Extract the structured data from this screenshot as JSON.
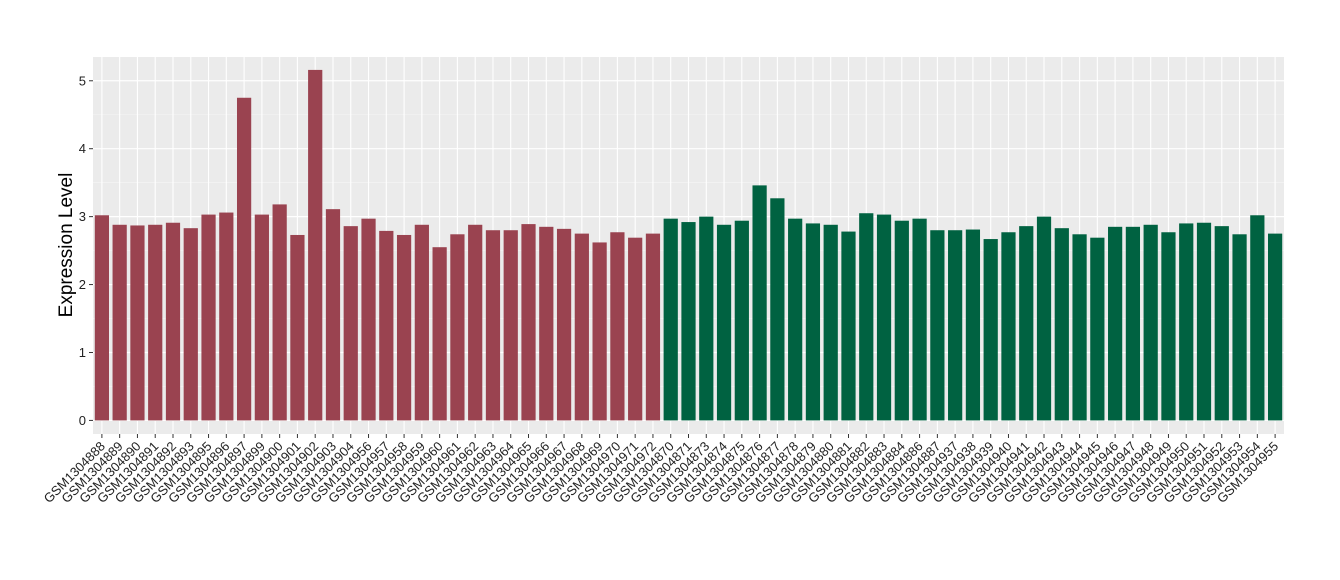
{
  "chart_data": {
    "type": "bar",
    "ylabel": "Expression Level",
    "xlabel": "",
    "ylim": [
      -0.2,
      5.35
    ],
    "yticks": [
      0,
      1,
      2,
      3,
      4,
      5
    ],
    "grid": true,
    "panel_background": "#ebebeb",
    "categories": [
      "GSM1304888",
      "GSM1304889",
      "GSM1304890",
      "GSM1304891",
      "GSM1304892",
      "GSM1304893",
      "GSM1304895",
      "GSM1304896",
      "GSM1304897",
      "GSM1304899",
      "GSM1304900",
      "GSM1304901",
      "GSM1304902",
      "GSM1304903",
      "GSM1304904",
      "GSM1304956",
      "GSM1304957",
      "GSM1304958",
      "GSM1304959",
      "GSM1304960",
      "GSM1304961",
      "GSM1304962",
      "GSM1304963",
      "GSM1304964",
      "GSM1304965",
      "GSM1304966",
      "GSM1304967",
      "GSM1304968",
      "GSM1304969",
      "GSM1304970",
      "GSM1304971",
      "GSM1304972",
      "GSM1304870",
      "GSM1304871",
      "GSM1304873",
      "GSM1304874",
      "GSM1304875",
      "GSM1304876",
      "GSM1304877",
      "GSM1304878",
      "GSM1304879",
      "GSM1304880",
      "GSM1304881",
      "GSM1304882",
      "GSM1304883",
      "GSM1304884",
      "GSM1304886",
      "GSM1304887",
      "GSM1304937",
      "GSM1304938",
      "GSM1304939",
      "GSM1304940",
      "GSM1304941",
      "GSM1304942",
      "GSM1304943",
      "GSM1304944",
      "GSM1304945",
      "GSM1304946",
      "GSM1304947",
      "GSM1304948",
      "GSM1304949",
      "GSM1304950",
      "GSM1304951",
      "GSM1304952",
      "GSM1304953",
      "GSM1304954",
      "GSM1304955"
    ],
    "values": [
      3.02,
      2.88,
      2.87,
      2.88,
      2.91,
      2.83,
      3.03,
      3.06,
      4.75,
      3.03,
      3.18,
      2.73,
      5.16,
      3.11,
      2.86,
      2.97,
      2.79,
      2.73,
      2.88,
      2.55,
      2.74,
      2.88,
      2.8,
      2.8,
      2.89,
      2.85,
      2.82,
      2.75,
      2.62,
      2.77,
      2.69,
      2.75,
      2.97,
      2.92,
      3.0,
      2.88,
      2.94,
      3.46,
      3.27,
      2.97,
      2.9,
      2.88,
      2.78,
      3.05,
      3.03,
      2.94,
      2.97,
      2.8,
      2.8,
      2.81,
      2.67,
      2.77,
      2.86,
      3.0,
      2.83,
      2.74,
      2.69,
      2.85,
      2.85,
      2.88,
      2.77,
      2.9,
      2.91,
      2.86,
      2.74,
      3.02,
      2.75
    ],
    "group_sizes": [
      32,
      35
    ],
    "colors": [
      "#9a4350",
      "#006241"
    ]
  }
}
